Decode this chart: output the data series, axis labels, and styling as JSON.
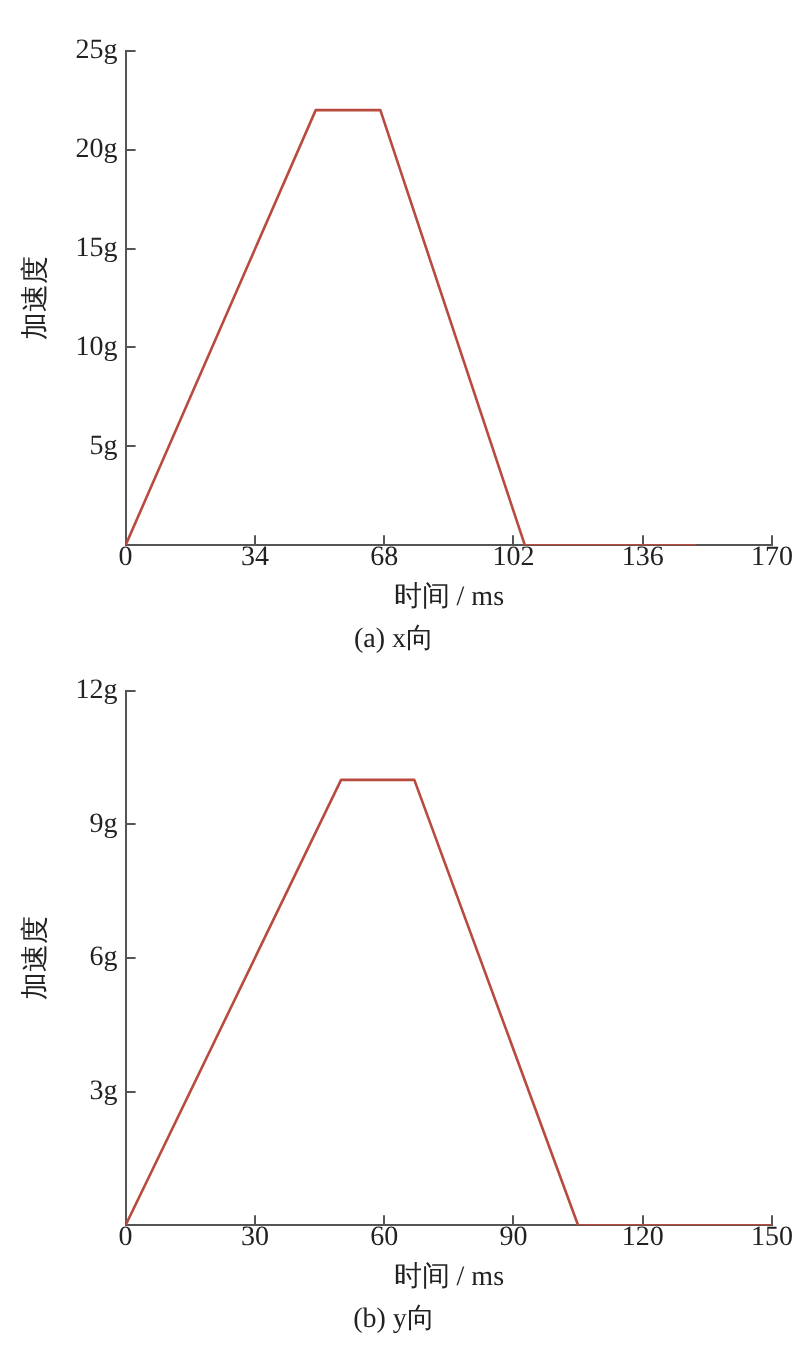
{
  "chart_data": [
    {
      "type": "line",
      "title": "(a) x向",
      "xlabel": "时间 / ms",
      "ylabel": "加速度",
      "x": [
        0,
        50,
        67,
        105,
        150
      ],
      "series": [
        {
          "color": "#b84a3e",
          "values": [
            0,
            22,
            22,
            0,
            0
          ]
        }
      ],
      "xlim": [
        0,
        170
      ],
      "xticks": [
        0,
        34,
        68,
        102,
        136,
        170
      ],
      "ylim": [
        0,
        25
      ],
      "yticks": [
        {
          "value": 5,
          "label": "5g"
        },
        {
          "value": 10,
          "label": "10g"
        },
        {
          "value": 15,
          "label": "15g"
        },
        {
          "value": 20,
          "label": "20g"
        },
        {
          "value": 25,
          "label": "25g"
        }
      ],
      "grid": false,
      "legend": false,
      "marker": "none",
      "line_style": "solid"
    },
    {
      "type": "line",
      "title": "(b) y向",
      "xlabel": "时间 / ms",
      "ylabel": "加速度",
      "x": [
        0,
        50,
        67,
        105,
        150
      ],
      "series": [
        {
          "color": "#b84a3e",
          "values": [
            0,
            10,
            10,
            0,
            0
          ]
        }
      ],
      "xlim": [
        0,
        150
      ],
      "xticks": [
        0,
        30,
        60,
        90,
        120,
        150
      ],
      "ylim": [
        0,
        12
      ],
      "yticks": [
        {
          "value": 3,
          "label": "3g"
        },
        {
          "value": 6,
          "label": "6g"
        },
        {
          "value": 9,
          "label": "9g"
        },
        {
          "value": 12,
          "label": "12g"
        }
      ],
      "grid": false,
      "legend": false,
      "marker": "none",
      "line_style": "solid"
    }
  ]
}
